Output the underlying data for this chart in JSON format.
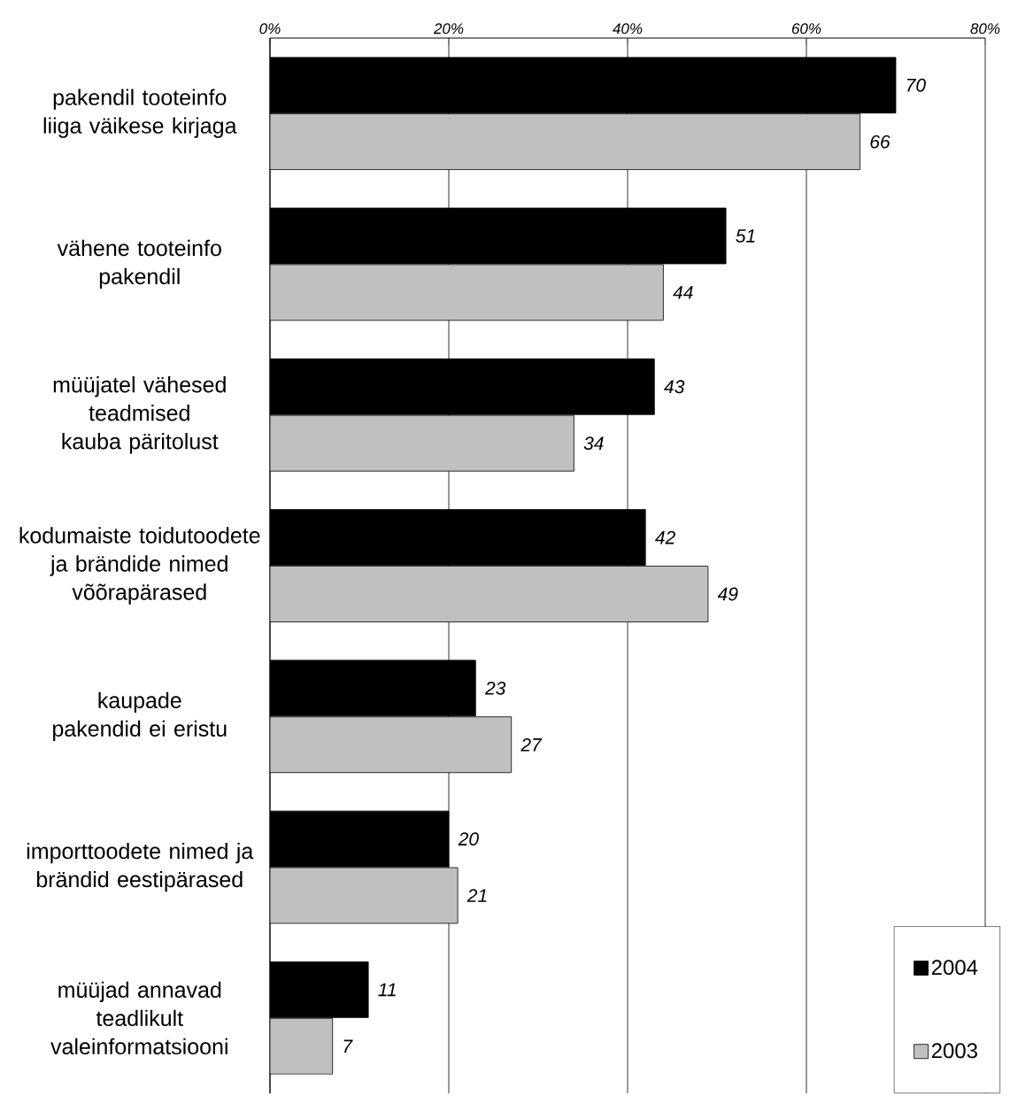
{
  "chart_data": {
    "type": "bar",
    "orientation": "horizontal",
    "categories": [
      "pakendil tooteinfo liiga väikese kirjaga",
      "vähene tooteinfo pakendil",
      "müüjatel vähesed teadmised kauba päritolust",
      "kodumaiste toidutoodete ja brändide nimed võõrapärased",
      "kaupade pakendid ei eristu",
      "importtoodete nimed ja brändid eestipärased",
      "müüjad annavad teadlikult valeinformatsiooni"
    ],
    "series": [
      {
        "name": "2004",
        "color": "#000000",
        "values": [
          70,
          51,
          43,
          42,
          23,
          20,
          11
        ]
      },
      {
        "name": "2003",
        "color": "#c0c0c0",
        "values": [
          66,
          44,
          34,
          49,
          27,
          21,
          7
        ]
      }
    ],
    "xlim": [
      0,
      80
    ],
    "xticks": [
      {
        "value": 0,
        "label": "0%"
      },
      {
        "value": 20,
        "label": "20%"
      },
      {
        "value": 40,
        "label": "40%"
      },
      {
        "value": 60,
        "label": "60%"
      },
      {
        "value": 80,
        "label": "80%"
      }
    ],
    "grid": "x",
    "legend": "bottom right",
    "data_labels": true
  }
}
